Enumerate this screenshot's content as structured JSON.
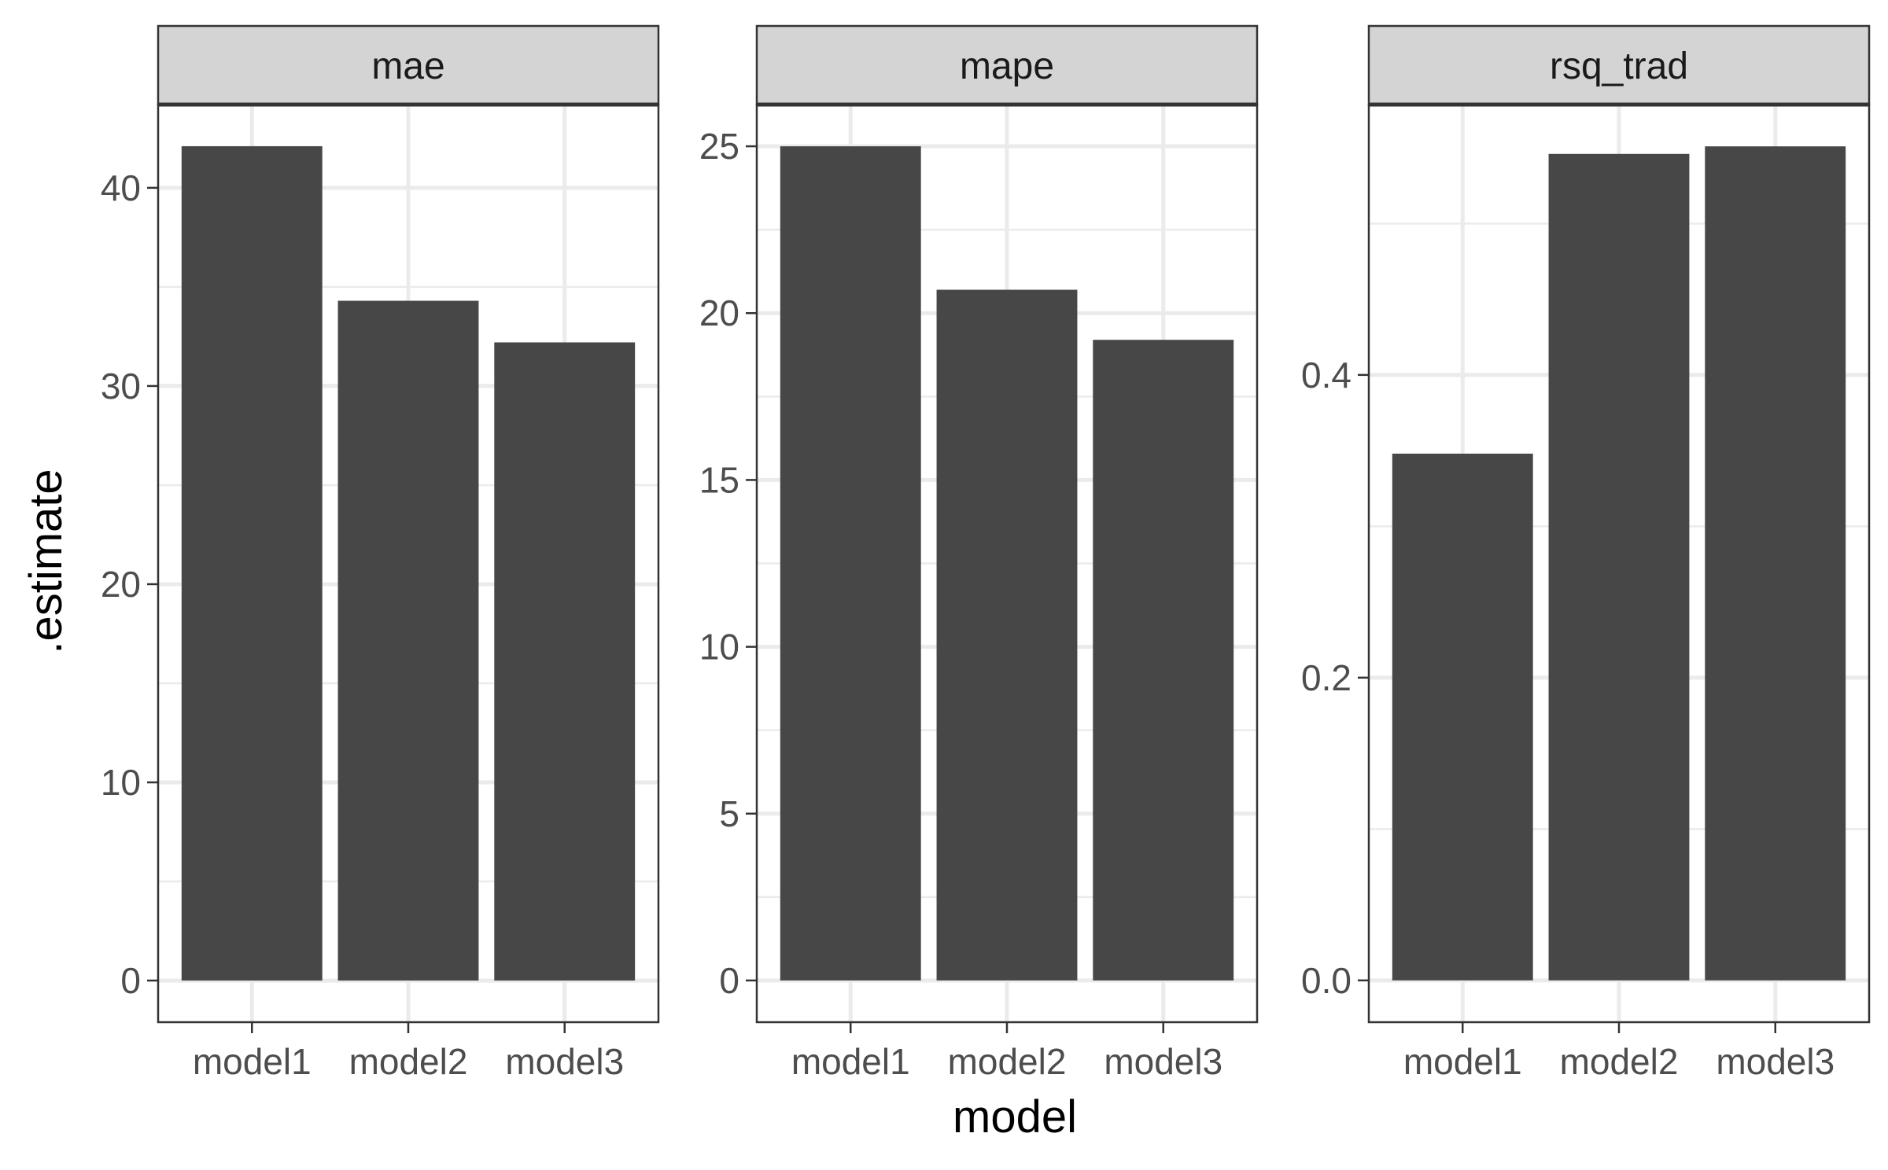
{
  "chart_data": {
    "type": "bar",
    "xlabel": "model",
    "ylabel": ".estimate",
    "grid": true,
    "facets": [
      {
        "strip": "mae",
        "categories": [
          "model1",
          "model2",
          "model3"
        ],
        "values": [
          42.1,
          34.3,
          32.2
        ],
        "ylim": [
          -2.1,
          44.2
        ],
        "y_ticks": [
          0,
          10,
          20,
          30,
          40
        ],
        "y_tick_labels": [
          "0",
          "10",
          "20",
          "30",
          "40"
        ]
      },
      {
        "strip": "mape",
        "categories": [
          "model1",
          "model2",
          "model3"
        ],
        "values": [
          25.0,
          20.7,
          19.2
        ],
        "ylim": [
          -1.25,
          26.25
        ],
        "y_ticks": [
          0,
          5,
          10,
          15,
          20,
          25
        ],
        "y_tick_labels": [
          "0",
          "5",
          "10",
          "15",
          "20",
          "25"
        ]
      },
      {
        "strip": "rsq_trad",
        "categories": [
          "model1",
          "model2",
          "model3"
        ],
        "values": [
          0.348,
          0.546,
          0.551
        ],
        "ylim": [
          -0.0276,
          0.5786
        ],
        "y_ticks": [
          0,
          0.2,
          0.4
        ],
        "y_tick_labels": [
          "0.0",
          "0.2",
          "0.4"
        ]
      }
    ],
    "colors": {
      "bar": "#474747",
      "strip_fill": "#d4d4d4",
      "grid": "#ebebeb",
      "panel_border": "#333333",
      "tick_text": "#4d4d4d",
      "title_text": "#000000"
    }
  }
}
